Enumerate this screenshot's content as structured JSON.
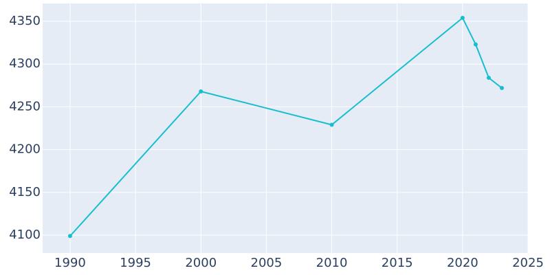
{
  "chart_data": {
    "type": "line",
    "x": [
      1990,
      2000,
      2010,
      2020,
      2021,
      2022,
      2023
    ],
    "series": [
      {
        "color": "#17becf",
        "values": [
          4099,
          4268,
          4229,
          4354,
          4323,
          4284,
          4272
        ]
      }
    ],
    "xlim": [
      1987.9,
      2025
    ],
    "xticks": [
      1990,
      1995,
      2000,
      2005,
      2010,
      2015,
      2020,
      2025
    ],
    "ylim": [
      4079.1,
      4370.9
    ],
    "yticks": [
      4100,
      4150,
      4200,
      4250,
      4300,
      4350
    ],
    "grid": true,
    "background": "#e5ecf6"
  }
}
